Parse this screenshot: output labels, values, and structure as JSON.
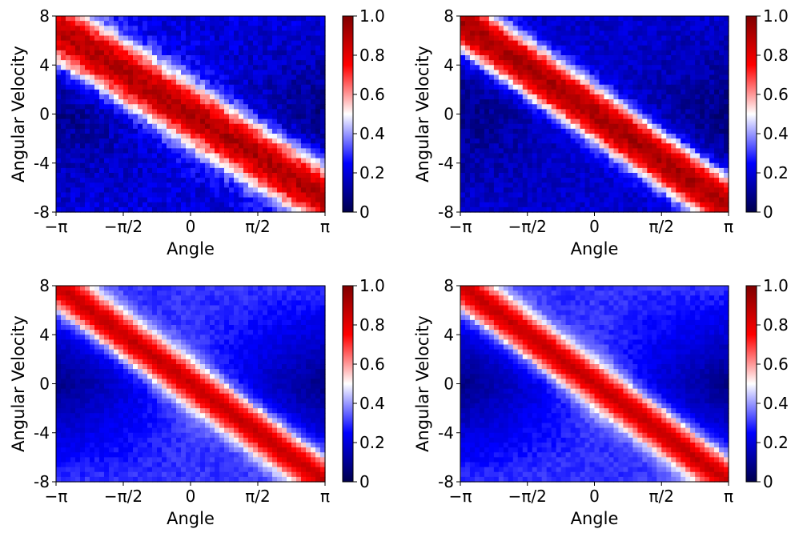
{
  "chart_data": [
    {
      "type": "heatmap",
      "xlabel": "Angle",
      "ylabel": "Angular Velocity",
      "xlim": [
        -3.14159,
        3.14159
      ],
      "ylim": [
        -8,
        8
      ],
      "x_ticks": [
        -3.14159,
        -1.5708,
        0,
        1.5708,
        3.14159
      ],
      "x_tick_labels": [
        "−π",
        "−π/2",
        "0",
        "π/2",
        "π"
      ],
      "y_ticks": [
        -8,
        -4,
        0,
        4,
        8
      ],
      "y_tick_labels": [
        "-8",
        "-4",
        "0",
        "4",
        "8"
      ],
      "colorbar": {
        "range": [
          0,
          1
        ],
        "ticks": [
          0,
          0.2,
          0.4,
          0.6,
          0.8,
          1.0
        ],
        "tick_labels": [
          "0",
          "0.2",
          "0.4",
          "0.6",
          "0.8",
          "1.0"
        ],
        "colormap": "seismic"
      },
      "band": {
        "slope": -2.2,
        "halfwidth": 2.2,
        "peak": 0.95,
        "background": 0.2,
        "edge_softness": 0.35,
        "corner_low": 0.05,
        "roughness": 0.12
      }
    },
    {
      "type": "heatmap",
      "xlabel": "Angle",
      "ylabel": "Angular Velocity",
      "xlim": [
        -3.14159,
        3.14159
      ],
      "ylim": [
        -8,
        8
      ],
      "x_ticks": [
        -3.14159,
        -1.5708,
        0,
        1.5708,
        3.14159
      ],
      "x_tick_labels": [
        "−π",
        "−π/2",
        "0",
        "π/2",
        "π"
      ],
      "y_ticks": [
        -8,
        -4,
        0,
        4,
        8
      ],
      "y_tick_labels": [
        "-8",
        "-4",
        "0",
        "4",
        "8"
      ],
      "colorbar": {
        "range": [
          0,
          1
        ],
        "ticks": [
          0,
          0.2,
          0.4,
          0.6,
          0.8,
          1.0
        ],
        "tick_labels": [
          "0",
          "0.2",
          "0.4",
          "0.6",
          "0.8",
          "1.0"
        ],
        "colormap": "seismic"
      },
      "band": {
        "slope": -2.4,
        "halfwidth": 2.0,
        "peak": 0.95,
        "background": 0.18,
        "edge_softness": 0.3,
        "corner_low": 0.05,
        "roughness": 0.1
      }
    },
    {
      "type": "heatmap",
      "xlabel": "Angle",
      "ylabel": "Angular Velocity",
      "xlim": [
        -3.14159,
        3.14159
      ],
      "ylim": [
        -8,
        8
      ],
      "x_ticks": [
        -3.14159,
        -1.5708,
        0,
        1.5708,
        3.14159
      ],
      "x_tick_labels": [
        "−π",
        "−π/2",
        "0",
        "π/2",
        "π"
      ],
      "y_ticks": [
        -8,
        -4,
        0,
        4,
        8
      ],
      "y_tick_labels": [
        "-8",
        "-4",
        "0",
        "4",
        "8"
      ],
      "colorbar": {
        "range": [
          0,
          1
        ],
        "ticks": [
          0,
          0.2,
          0.4,
          0.6,
          0.8,
          1.0
        ],
        "tick_labels": [
          "0",
          "0.2",
          "0.4",
          "0.6",
          "0.8",
          "1.0"
        ],
        "colormap": "seismic"
      },
      "band": {
        "slope": -2.55,
        "halfwidth": 1.5,
        "peak": 0.93,
        "background": 0.3,
        "edge_softness": 0.45,
        "corner_low": 0.02,
        "roughness": 0.05
      }
    },
    {
      "type": "heatmap",
      "xlabel": "Angle",
      "ylabel": "Angular Velocity",
      "xlim": [
        -3.14159,
        3.14159
      ],
      "ylim": [
        -8,
        8
      ],
      "x_ticks": [
        -3.14159,
        -1.5708,
        0,
        1.5708,
        3.14159
      ],
      "x_tick_labels": [
        "−π",
        "−π/2",
        "0",
        "π/2",
        "π"
      ],
      "y_ticks": [
        -8,
        -4,
        0,
        4,
        8
      ],
      "y_tick_labels": [
        "-8",
        "-4",
        "0",
        "4",
        "8"
      ],
      "colorbar": {
        "range": [
          0,
          1
        ],
        "ticks": [
          0,
          0.2,
          0.4,
          0.6,
          0.8,
          1.0
        ],
        "tick_labels": [
          "0",
          "0.2",
          "0.4",
          "0.6",
          "0.8",
          "1.0"
        ],
        "colormap": "seismic"
      },
      "band": {
        "slope": -2.55,
        "halfwidth": 1.5,
        "peak": 0.93,
        "background": 0.3,
        "edge_softness": 0.45,
        "corner_low": 0.02,
        "roughness": 0.05
      }
    }
  ]
}
